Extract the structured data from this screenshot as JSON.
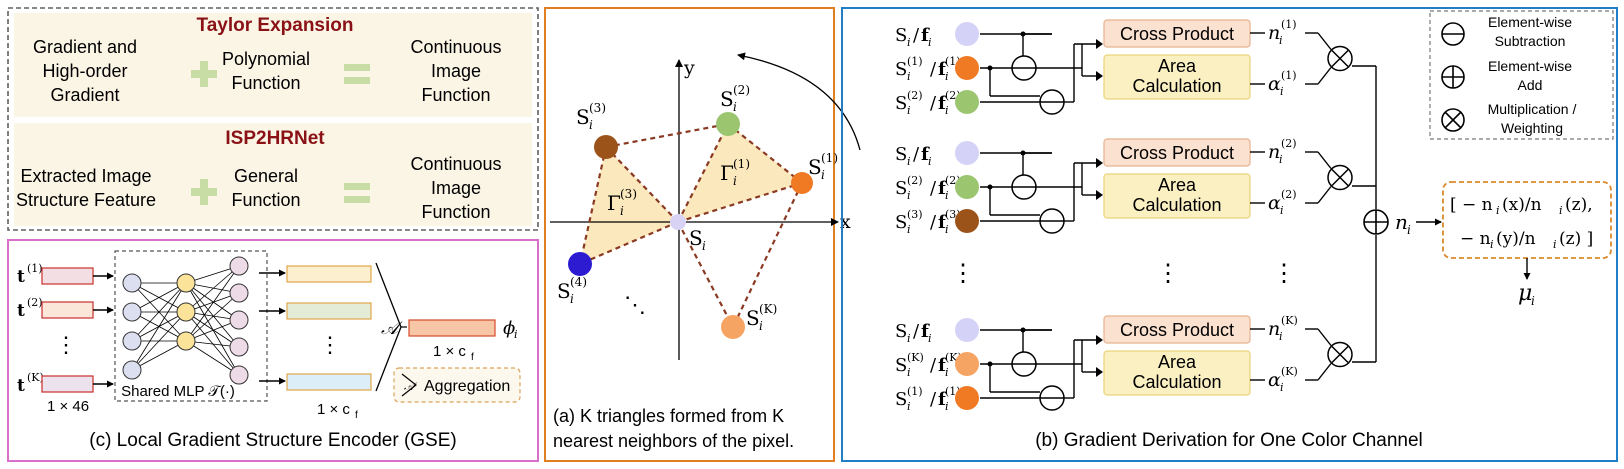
{
  "taylor_panel": {
    "title": "Taylor Expansion",
    "term1_line1": "Gradient and",
    "term1_line2": "High-order",
    "term1_line3": "Gradient",
    "plus": "+",
    "term2_line1": "Polynomial",
    "term2_line2": "Function",
    "equals": "=",
    "result_line1": "Continuous",
    "result_line2": "Image",
    "result_line3": "Function"
  },
  "isp_panel": {
    "title": "ISP2HRNet",
    "term1_line1": "Extracted Image",
    "term1_line2": "Structure Feature",
    "plus": "+",
    "term2_line1": "General",
    "term2_line2": "Function",
    "equals": "=",
    "result_line1": "Continuous",
    "result_line2": "Image",
    "result_line3": "Function"
  },
  "gse_panel": {
    "inputs": [
      {
        "label": "t",
        "sup": "(1)"
      },
      {
        "label": "t",
        "sup": "(2)"
      },
      {
        "label": "t",
        "sup": "(K)"
      }
    ],
    "input_dots": "⋮",
    "input_dim": "1 × 46",
    "mlp_label": "Shared MLP 𝒯(·)",
    "output_dots": "⋮",
    "output_dim": "1 × c",
    "output_dim_sub": "f",
    "agg_symbol": "𝒜",
    "phi_label": "ϕ",
    "phi_sub": "i",
    "phi_dim": "1 × c",
    "phi_dim_sub": "f",
    "legend_label": "Aggregation",
    "caption": "(c) Local Gradient Structure Encoder (GSE)"
  },
  "triangle_panel": {
    "axis_x": "x",
    "axis_y": "y",
    "center_label": "S",
    "center_sub": "i",
    "points": [
      {
        "label": "S",
        "sub": "i",
        "sup": "(1)",
        "color": "#f07a24"
      },
      {
        "label": "S",
        "sub": "i",
        "sup": "(2)",
        "color": "#9bc56f"
      },
      {
        "label": "S",
        "sub": "i",
        "sup": "(3)",
        "color": "#9c5319"
      },
      {
        "label": "S",
        "sub": "i",
        "sup": "(4)",
        "color": "#2c1bd0"
      },
      {
        "label": "S",
        "sub": "i",
        "sup": "(K)",
        "color": "#f5a463"
      }
    ],
    "gamma1": {
      "label": "Γ",
      "sub": "i",
      "sup": "(1)"
    },
    "gamma3": {
      "label": "Γ",
      "sub": "i",
      "sup": "(3)"
    },
    "dots": "⋱",
    "caption_line1": "(a) K triangles formed from K",
    "caption_line2": "nearest neighbors of the pixel."
  },
  "gradient_panel": {
    "groups": [
      {
        "rows": [
          {
            "label": "S",
            "sub": "i",
            "sup": "",
            "color": "#d4d2f6"
          },
          {
            "label": "S",
            "sub": "i",
            "sup": "(1)",
            "color": "#f07a24"
          },
          {
            "label": "S",
            "sub": "i",
            "sup": "(2)",
            "color": "#9bc56f"
          }
        ],
        "cross_label": "Cross Product",
        "area_line1": "Area",
        "area_line2": "Calculation",
        "n_label": "n",
        "n_sub": "i",
        "n_sup": "(1)",
        "a_label": "α",
        "a_sub": "i",
        "a_sup": "(1)"
      },
      {
        "rows": [
          {
            "label": "S",
            "sub": "i",
            "sup": "",
            "color": "#d4d2f6"
          },
          {
            "label": "S",
            "sub": "i",
            "sup": "(2)",
            "color": "#9bc56f"
          },
          {
            "label": "S",
            "sub": "i",
            "sup": "(3)",
            "color": "#9c5319"
          }
        ],
        "cross_label": "Cross Product",
        "area_line1": "Area",
        "area_line2": "Calculation",
        "n_label": "n",
        "n_sub": "i",
        "n_sup": "(2)",
        "a_label": "α",
        "a_sub": "i",
        "a_sup": "(2)"
      },
      {
        "rows": [
          {
            "label": "S",
            "sub": "i",
            "sup": "",
            "color": "#d4d2f6"
          },
          {
            "label": "S",
            "sub": "i",
            "sup": "(K)",
            "color": "#f5a463"
          },
          {
            "label": "S",
            "sub": "i",
            "sup": "(1)",
            "color": "#f07a24"
          }
        ],
        "cross_label": "Cross Product",
        "area_line1": "Area",
        "area_line2": "Calculation",
        "n_label": "n",
        "n_sub": "i",
        "n_sup": "(K)",
        "a_label": "α",
        "a_sub": "i",
        "a_sup": "(K)"
      }
    ],
    "feature_label": "f",
    "vdots": "⋮",
    "ni_label": "n",
    "ni_sub": "i",
    "result_line1": "[ − n",
    "result_line1b": "(x)/n",
    "result_line1c": "(z),",
    "result_line2": "− n",
    "result_line2b": "(y)/n",
    "result_line2c": "(z) ]",
    "result_sub": "i",
    "mu_label": "μ",
    "mu_sub": "i",
    "legend": [
      {
        "symbol": "minus",
        "line1": "Element-wise",
        "line2": "Subtraction"
      },
      {
        "symbol": "plus",
        "line1": "Element-wise",
        "line2": "Add"
      },
      {
        "symbol": "times",
        "line1": "Multiplication /",
        "line2": "Weighting"
      }
    ],
    "caption": "(b) Gradient Derivation for One Color Channel"
  },
  "colors": {
    "border_gray": "#606060",
    "border_pink": "#d86fc9",
    "border_orange": "#e07f22",
    "border_blue": "#1f7fc6",
    "panel_fill": "#fbf5e6",
    "title_red": "#8a1217",
    "plus_green": "#c8dca6",
    "cross_fill": "#fbe1cf",
    "area_fill": "#fbf0c2",
    "result_border": "#d98a2d"
  }
}
